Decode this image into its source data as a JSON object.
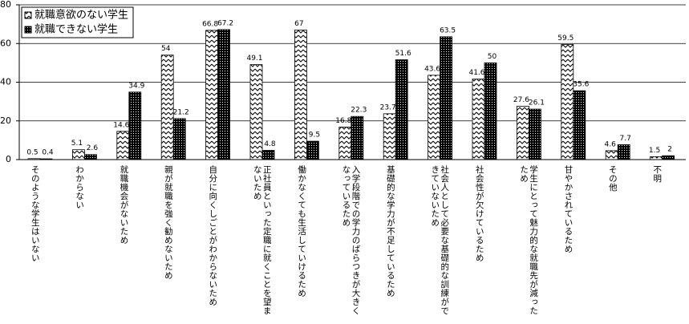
{
  "chart_data": {
    "type": "bar",
    "categories": [
      "そのような学生はいない",
      "わからない",
      "就職機会がないため",
      "親が就職を強く勧めないため",
      "自分に向くしごとがわからないため",
      "正社員といった定職に就くことを望まないため",
      "働かなくても生活していけるため",
      "入学段階での学力のばらつきが大きくなっているため",
      "基礎的な学力が不足しているため",
      "社会人として必要な基礎的な訓練ができていないため",
      "社会性が欠けているため",
      "学生にとって魅力的な就職先が減ったため",
      "甘やかされているため",
      "その他",
      "不明"
    ],
    "series": [
      {
        "name": "就職意欲のない学生",
        "color": "#000000",
        "values": [
          0.5,
          5.1,
          14.6,
          54,
          66.8,
          49.1,
          67,
          16.8,
          23.7,
          43.6,
          41.6,
          27.6,
          59.5,
          4.6,
          1.5
        ]
      },
      {
        "name": "就職できない学生",
        "color": "#000000",
        "values": [
          0.4,
          2.6,
          34.9,
          21.2,
          67.2,
          4.8,
          9.5,
          22.3,
          51.6,
          63.5,
          50,
          26.1,
          35.6,
          7.7,
          2
        ]
      }
    ],
    "ylim": [
      0,
      80
    ],
    "yticks": [
      0,
      20,
      40,
      60,
      80
    ],
    "grid": true,
    "legend": "top-left"
  }
}
